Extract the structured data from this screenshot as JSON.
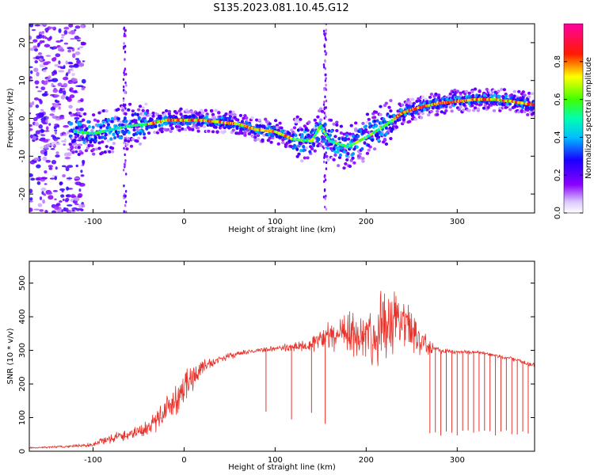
{
  "figure": {
    "title": "S135.2023.081.10.45.G12"
  },
  "chart_data": [
    {
      "type": "heatmap",
      "xlabel": "Height of straight line (km)",
      "ylabel": "Frequency (Hz)",
      "xlim": [
        -170,
        385
      ],
      "ylim": [
        -25,
        25
      ],
      "xticks": [
        -100,
        0,
        100,
        200,
        300
      ],
      "yticks": [
        -20,
        -10,
        0,
        10,
        20
      ],
      "colorbar": {
        "label": "Normalized spectral amplitude",
        "range": [
          0.0,
          1.0
        ],
        "ticks": [
          0.0,
          0.2,
          0.4,
          0.6,
          0.8
        ],
        "tick_labels": [
          "0.0",
          "0.2",
          "0.4",
          "0.6",
          "0.8"
        ],
        "colormap": "rainbow (white-violet-blue-cyan-green-yellow-red-magenta)"
      },
      "dominant_frequency_ridge": {
        "x": [
          -120,
          -100,
          -80,
          -60,
          -40,
          -20,
          0,
          20,
          40,
          60,
          80,
          100,
          120,
          140,
          150,
          160,
          180,
          200,
          220,
          240,
          260,
          280,
          300,
          320,
          340,
          360,
          385
        ],
        "y": [
          -3.5,
          -4,
          -3,
          -2,
          -1.5,
          -0.5,
          -0.5,
          -0.5,
          -1,
          -1.5,
          -3,
          -3.5,
          -5.5,
          -6,
          -2,
          -6,
          -7.5,
          -5,
          -2,
          1.5,
          3,
          4,
          4.5,
          5,
          5,
          4.5,
          3.5
        ]
      },
      "noise_region_x": [
        -170,
        -120
      ],
      "vertical_streaks_x": [
        -65,
        155
      ]
    },
    {
      "type": "line",
      "xlabel": "Height of straight line (km)",
      "ylabel": "SNR (10 * v/v)",
      "xlim": [
        -170,
        385
      ],
      "ylim": [
        0,
        565
      ],
      "xticks": [
        -100,
        0,
        100,
        200,
        300
      ],
      "yticks": [
        0,
        100,
        200,
        300,
        400,
        500
      ],
      "color": "#e8322a",
      "series": [
        {
          "x": [
            -170,
            -150,
            -120,
            -100,
            -80,
            -60,
            -40,
            -20,
            0,
            20,
            40,
            60,
            80,
            100,
            120,
            140,
            160,
            180,
            200,
            220,
            240,
            260,
            280,
            300,
            320,
            340,
            360,
            385
          ],
          "y": [
            10,
            12,
            15,
            20,
            40,
            50,
            70,
            120,
            190,
            250,
            275,
            290,
            300,
            305,
            310,
            320,
            340,
            345,
            350,
            360,
            380,
            330,
            300,
            295,
            295,
            285,
            275,
            255
          ],
          "fluctuation": [
            3,
            3,
            4,
            8,
            15,
            18,
            25,
            45,
            55,
            25,
            10,
            8,
            6,
            8,
            15,
            25,
            45,
            60,
            80,
            110,
            90,
            40,
            10,
            6,
            5,
            6,
            6,
            6
          ]
        }
      ],
      "dropouts_x": [
        90,
        118,
        140,
        155,
        270,
        276,
        282,
        288,
        294,
        300,
        306,
        312,
        318,
        324,
        330,
        336,
        342,
        348,
        354,
        360,
        366,
        372,
        378
      ]
    }
  ]
}
